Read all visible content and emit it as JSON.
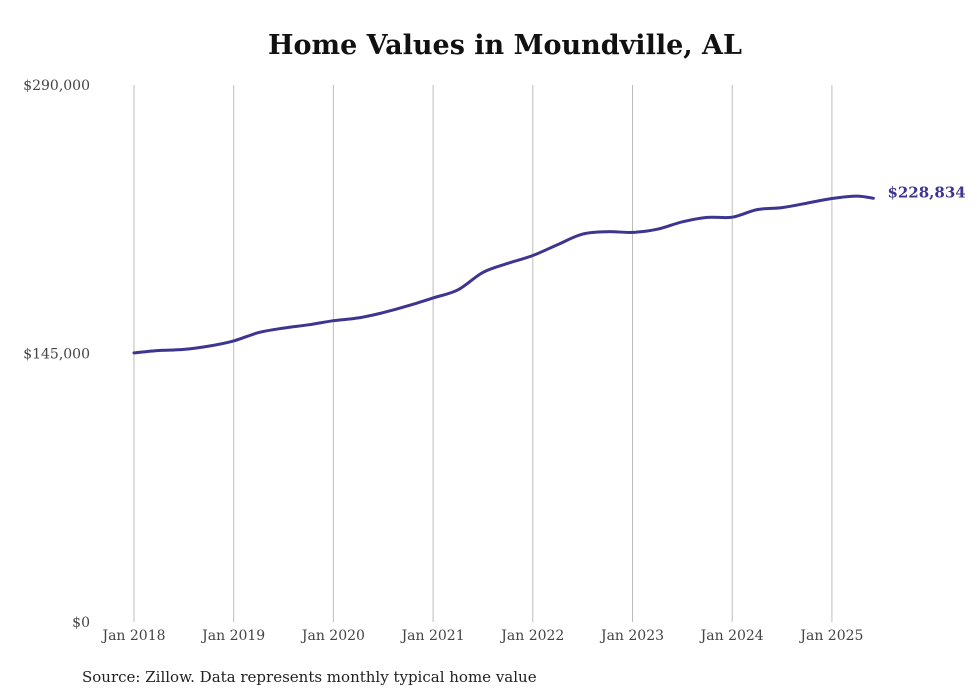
{
  "footer": {
    "source": "Source: Zillow. Data represents monthly typical home value"
  },
  "chart_data": {
    "type": "line",
    "title": "Home Values in Moundville, AL",
    "xlabel": "",
    "ylabel": "",
    "ylim": [
      0,
      290000
    ],
    "y_ticks": [
      {
        "value": 0,
        "label": "$0"
      },
      {
        "value": 145000,
        "label": "$145,000"
      },
      {
        "value": 290000,
        "label": "$290,000"
      }
    ],
    "x_ticks": [
      "Jan 2018",
      "Jan 2019",
      "Jan 2020",
      "Jan 2021",
      "Jan 2022",
      "Jan 2023",
      "Jan 2024",
      "Jan 2025"
    ],
    "vertical_grid": true,
    "horizontal_grid": false,
    "line_color": "#3d3590",
    "end_label": "$228,834",
    "series": [
      {
        "x": [
          "2018-01",
          "2018-04",
          "2018-07",
          "2018-10",
          "2019-01",
          "2019-04",
          "2019-07",
          "2019-10",
          "2020-01",
          "2020-04",
          "2020-07",
          "2020-10",
          "2021-01",
          "2021-04",
          "2021-07",
          "2021-10",
          "2022-01",
          "2022-04",
          "2022-07",
          "2022-10",
          "2023-01",
          "2023-04",
          "2023-07",
          "2023-10",
          "2024-01",
          "2024-04",
          "2024-07",
          "2024-10",
          "2025-01",
          "2025-04",
          "2025-06"
        ],
        "values": [
          145300,
          146600,
          147200,
          149000,
          151800,
          156300,
          158700,
          160500,
          162700,
          164200,
          167100,
          170800,
          175000,
          179400,
          188800,
          193700,
          197900,
          203800,
          209500,
          210800,
          210400,
          212100,
          216100,
          218500,
          218600,
          222700,
          223800,
          226200,
          228700,
          230000,
          228834
        ]
      }
    ]
  }
}
